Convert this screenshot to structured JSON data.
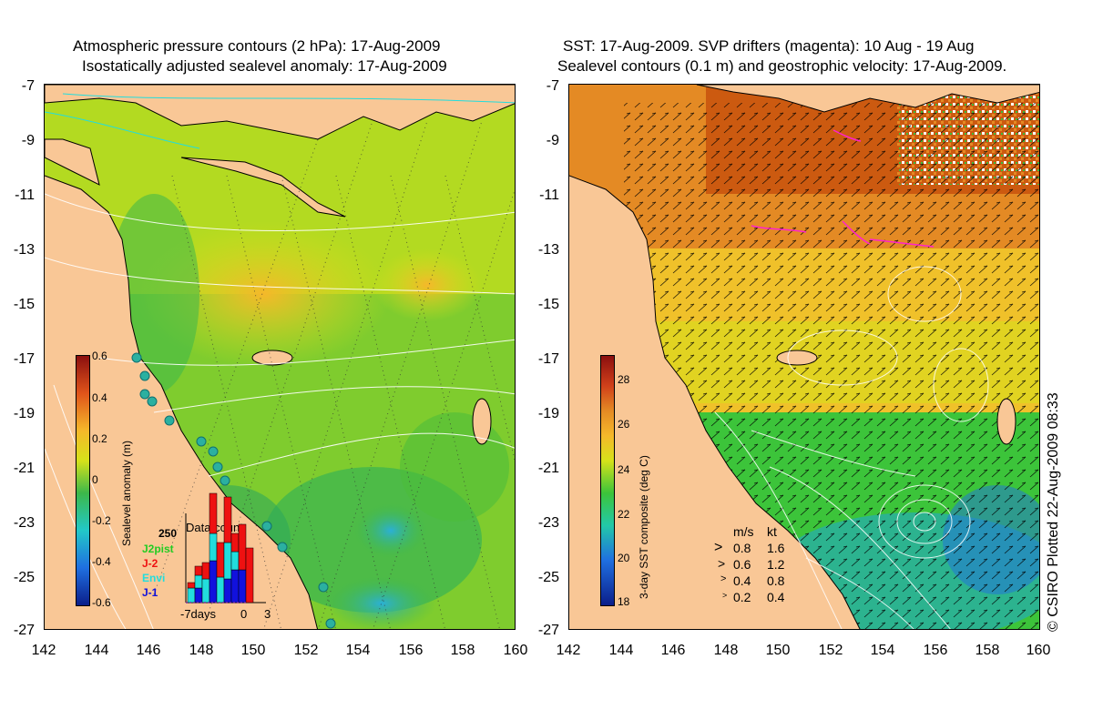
{
  "left": {
    "title_line1": "Atmospheric pressure contours (2 hPa): 17-Aug-2009",
    "title_line2": "Isostatically adjusted sealevel anomaly: 17-Aug-2009",
    "y_ticks": [
      "-7",
      "-9",
      "-11",
      "-13",
      "-15",
      "-17",
      "-19",
      "-21",
      "-23",
      "-25",
      "-27"
    ],
    "x_ticks": [
      "142",
      "144",
      "146",
      "148",
      "150",
      "152",
      "154",
      "156",
      "158",
      "160"
    ],
    "colorbar": {
      "label": "Sealevel anomaly (m)",
      "ticks": [
        "0.6",
        "0.4",
        "0.2",
        "0",
        "-0.2",
        "-0.4",
        "-0.6"
      ]
    },
    "data_count": {
      "title": "Data count",
      "max_label": "250",
      "x_left": "-7days",
      "x_zero": "0",
      "x_right": "3",
      "legend": [
        {
          "name": "J2pist",
          "color": "#22cc22"
        },
        {
          "name": "J-2",
          "color": "#ee1111"
        },
        {
          "name": "Envi",
          "color": "#22dddd"
        },
        {
          "name": "J-1",
          "color": "#1111dd"
        }
      ]
    }
  },
  "right": {
    "title_line1": "SST: 17-Aug-2009. SVP drifters (magenta): 10 Aug - 19 Aug",
    "title_line2": "Sealevel contours (0.1 m) and geostrophic velocity: 17-Aug-2009.",
    "y_ticks": [
      "-7",
      "-9",
      "-11",
      "-13",
      "-15",
      "-17",
      "-19",
      "-21",
      "-23",
      "-25",
      "-27"
    ],
    "x_ticks": [
      "142",
      "144",
      "146",
      "148",
      "150",
      "152",
      "154",
      "156",
      "158",
      "160"
    ],
    "colorbar": {
      "label": "3-day SST composite (deg C)",
      "ticks": [
        "28",
        "26",
        "24",
        "22",
        "20",
        "18"
      ]
    },
    "velocity_scale": {
      "header_ms": "m/s",
      "header_kt": "kt",
      "rows": [
        {
          "ms": "0.8",
          "kt": "1.6"
        },
        {
          "ms": "0.6",
          "kt": "1.2"
        },
        {
          "ms": "0.4",
          "kt": "0.8"
        },
        {
          "ms": "0.2",
          "kt": "0.4"
        }
      ]
    }
  },
  "credit": "© CSIRO Plotted 22-Aug-2009 08:33",
  "colors": {
    "land": "#f9c796",
    "sla_low": "#0b1e8a",
    "sla_zero": "#3cb84a",
    "sla_high": "#a01010",
    "sst_low": "#0b1e8a",
    "sst_mid": "#3cc43a",
    "sst_high": "#a01010"
  }
}
